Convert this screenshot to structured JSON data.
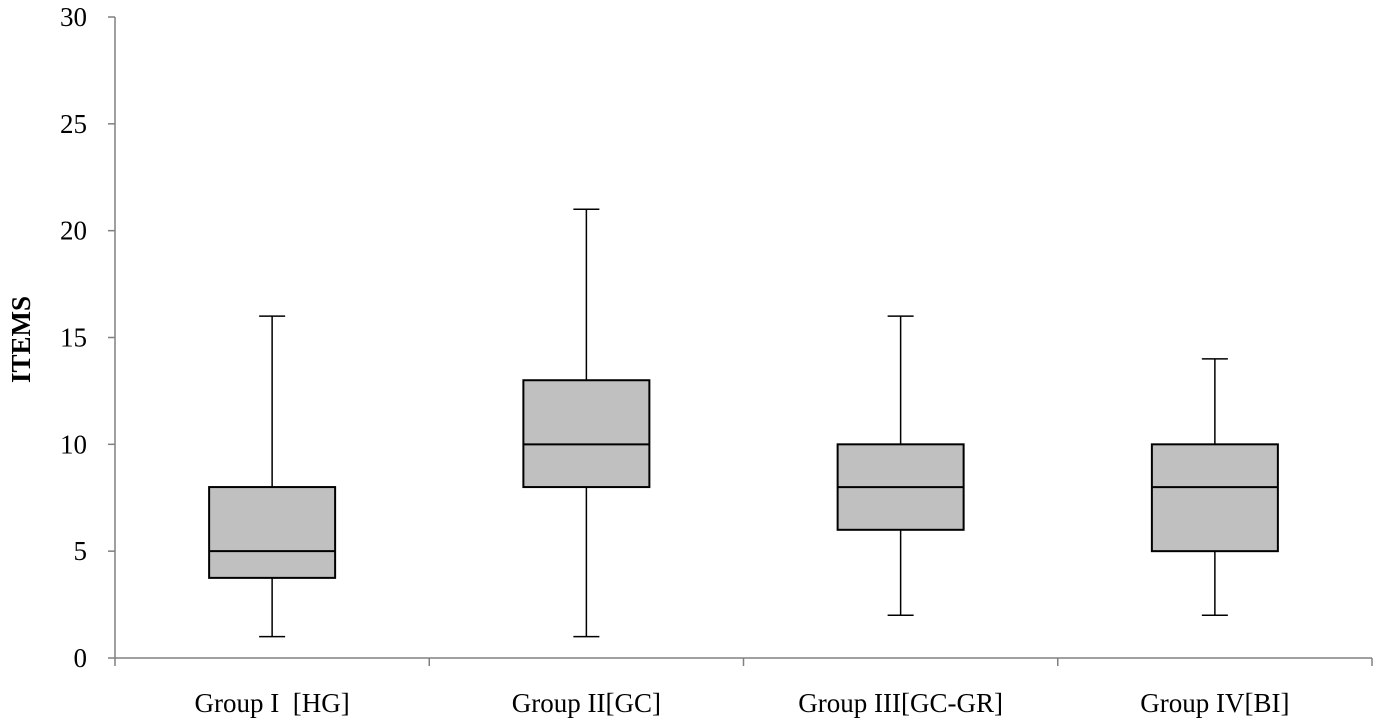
{
  "chart_data": {
    "type": "box",
    "title": "",
    "xlabel": "",
    "ylabel": "ITEMS",
    "ylim": [
      0,
      30
    ],
    "yticks": [
      "0",
      "5",
      "10",
      "15",
      "20",
      "25",
      "30"
    ],
    "grid": false,
    "legend": "none",
    "box_fill": "#c0c0c0",
    "line_color": "#000000",
    "categories": [
      "Group I  [HG]",
      "Group II[GC]",
      "Group III[GC-GR]",
      "Group IV[BI]"
    ],
    "boxes": [
      {
        "min": 1,
        "q1": 3.75,
        "median": 5,
        "q3": 8,
        "max": 16
      },
      {
        "min": 1,
        "q1": 8,
        "median": 10,
        "q3": 13,
        "max": 21
      },
      {
        "min": 2,
        "q1": 6,
        "median": 8,
        "q3": 10,
        "max": 16
      },
      {
        "min": 2,
        "q1": 5,
        "median": 8,
        "q3": 10,
        "max": 14
      }
    ]
  }
}
